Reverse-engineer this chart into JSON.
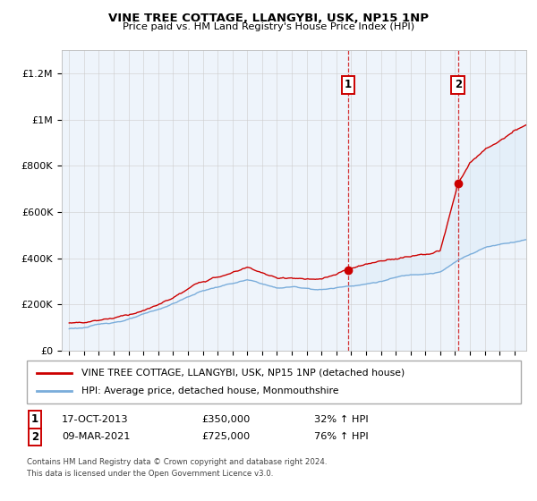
{
  "title": "VINE TREE COTTAGE, LLANGYBI, USK, NP15 1NP",
  "subtitle": "Price paid vs. HM Land Registry's House Price Index (HPI)",
  "legend_line1": "VINE TREE COTTAGE, LLANGYBI, USK, NP15 1NP (detached house)",
  "legend_line2": "HPI: Average price, detached house, Monmouthshire",
  "footnote1": "Contains HM Land Registry data © Crown copyright and database right 2024.",
  "footnote2": "This data is licensed under the Open Government Licence v3.0.",
  "sale1_label": "1",
  "sale1_date": "17-OCT-2013",
  "sale1_price": "£350,000",
  "sale1_hpi": "32% ↑ HPI",
  "sale1_year": 2013.8,
  "sale1_value": 350000,
  "sale2_label": "2",
  "sale2_date": "09-MAR-2021",
  "sale2_price": "£725,000",
  "sale2_hpi": "76% ↑ HPI",
  "sale2_year": 2021.2,
  "sale2_value": 725000,
  "ylim": [
    0,
    1300000
  ],
  "xlim_start": 1994.5,
  "xlim_end": 2025.8,
  "red_color": "#cc0000",
  "blue_color": "#7aaddb",
  "fill_color": "#daeaf7",
  "background_color": "#eef4fb",
  "grid_color": "#cccccc",
  "yticks": [
    0,
    200000,
    400000,
    600000,
    800000,
    1000000,
    1200000
  ],
  "ytick_labels": [
    "£0",
    "£200K",
    "£400K",
    "£600K",
    "£800K",
    "£1M",
    "£1.2M"
  ],
  "xticks": [
    1995,
    1996,
    1997,
    1998,
    1999,
    2000,
    2001,
    2002,
    2003,
    2004,
    2005,
    2006,
    2007,
    2008,
    2009,
    2010,
    2011,
    2012,
    2013,
    2014,
    2015,
    2016,
    2017,
    2018,
    2019,
    2020,
    2021,
    2022,
    2023,
    2024,
    2025
  ]
}
